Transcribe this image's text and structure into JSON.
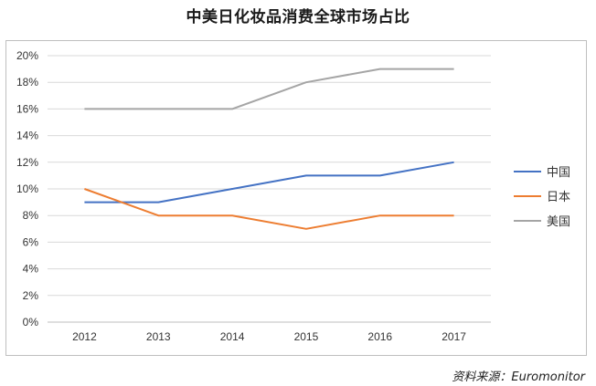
{
  "chart_data": {
    "type": "line",
    "title": "中美日化妆品消费全球市场占比",
    "categories": [
      "2012",
      "2013",
      "2014",
      "2015",
      "2016",
      "2017"
    ],
    "y_ticks": [
      "0%",
      "2%",
      "4%",
      "6%",
      "8%",
      "10%",
      "12%",
      "14%",
      "16%",
      "18%",
      "20%"
    ],
    "ylim": [
      0,
      20
    ],
    "y_unit": "%",
    "grid": "horizontal",
    "legend_position": "right",
    "series": [
      {
        "name": "中国",
        "color": "#4472C4",
        "values": [
          9,
          9,
          10,
          11,
          11,
          12
        ]
      },
      {
        "name": "日本",
        "color": "#ED7D31",
        "values": [
          10,
          8,
          8,
          7,
          8,
          8
        ]
      },
      {
        "name": "美国",
        "color": "#A5A5A5",
        "values": [
          16,
          16,
          16,
          18,
          19,
          19
        ]
      }
    ]
  },
  "source_note": "资料来源：Euromonitor"
}
